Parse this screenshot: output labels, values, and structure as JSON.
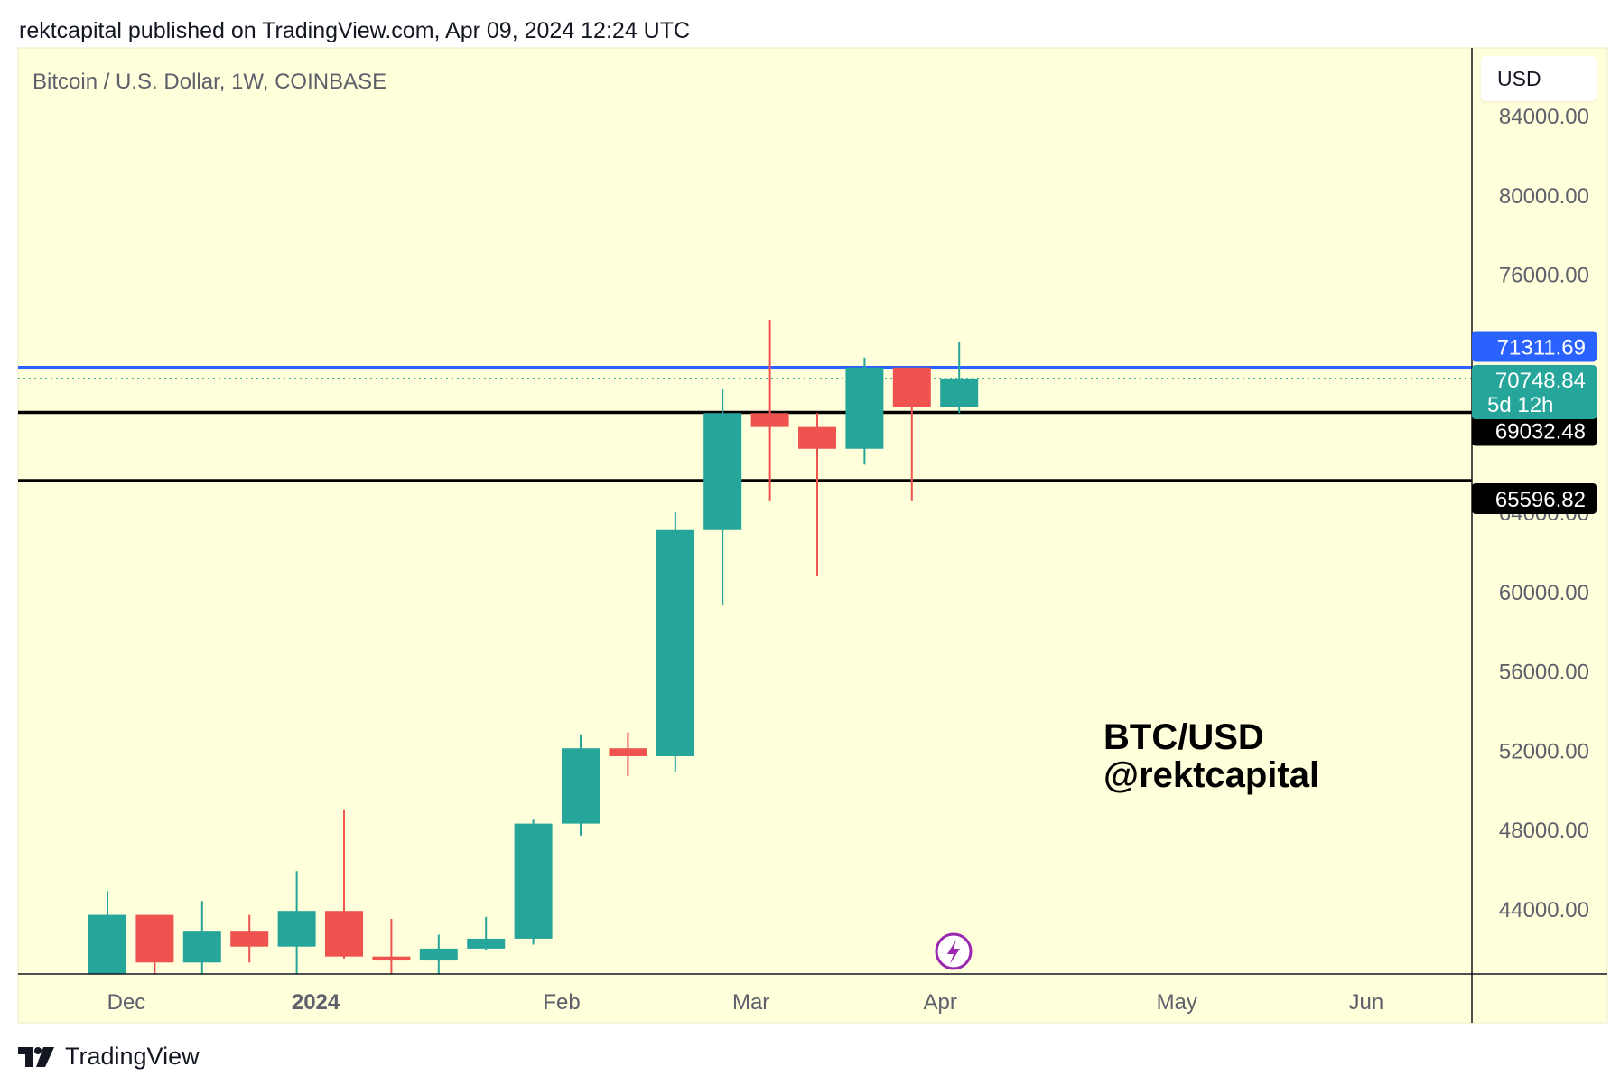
{
  "header": {
    "published_by": "rektcapital published on TradingView.com, Apr 09, 2024 12:24 UTC"
  },
  "symbol_title": "Bitcoin / U.S. Dollar, 1W, COINBASE",
  "currency": "USD",
  "watermark": {
    "line1": "BTC/USD",
    "line2": "@rektcapital"
  },
  "footer": {
    "brand": "TradingView"
  },
  "colors": {
    "background": "#ffffdb",
    "up": "#26a69a",
    "down": "#ef5350",
    "current_level": "#2962ff",
    "level": "#000000"
  },
  "chart_data": {
    "type": "candlestick",
    "title": "Bitcoin / U.S. Dollar, 1W, COINBASE",
    "x_ticks": [
      {
        "label": "Dec",
        "week": 0.4
      },
      {
        "label": "2024",
        "week": 4.4,
        "bold": true
      },
      {
        "label": "Feb",
        "week": 9.6
      },
      {
        "label": "Mar",
        "week": 13.6
      },
      {
        "label": "Apr",
        "week": 17.6
      },
      {
        "label": "May",
        "week": 22.6
      },
      {
        "label": "Jun",
        "week": 26.6
      }
    ],
    "y_ticks": [
      44000,
      48000,
      52000,
      56000,
      60000,
      64000,
      76000,
      80000,
      84000
    ],
    "y_tick_labels": [
      "44000.00",
      "48000.00",
      "52000.00",
      "56000.00",
      "60000.00",
      "64000.00",
      "76000.00",
      "80000.00",
      "84000.00"
    ],
    "ylim": [
      40700,
      86400
    ],
    "candles": [
      {
        "open": 40700,
        "high": 44900,
        "low": 40700,
        "close": 43700
      },
      {
        "open": 43700,
        "high": 43700,
        "low": 40700,
        "close": 41300
      },
      {
        "open": 41300,
        "high": 44400,
        "low": 40700,
        "close": 42900
      },
      {
        "open": 42900,
        "high": 43700,
        "low": 41300,
        "close": 42100
      },
      {
        "open": 42100,
        "high": 45900,
        "low": 40700,
        "close": 43900
      },
      {
        "open": 43900,
        "high": 49000,
        "low": 41500,
        "close": 41600
      },
      {
        "open": 41600,
        "high": 43500,
        "low": 40700,
        "close": 41400
      },
      {
        "open": 41400,
        "high": 42700,
        "low": 40700,
        "close": 42000
      },
      {
        "open": 42000,
        "high": 43600,
        "low": 41900,
        "close": 42500
      },
      {
        "open": 42500,
        "high": 48500,
        "low": 42200,
        "close": 48300
      },
      {
        "open": 48300,
        "high": 52800,
        "low": 47700,
        "close": 52100
      },
      {
        "open": 52100,
        "high": 52900,
        "low": 50700,
        "close": 51700
      },
      {
        "open": 51700,
        "high": 64000,
        "low": 50900,
        "close": 63100
      },
      {
        "open": 63100,
        "high": 70200,
        "low": 59300,
        "close": 69000
      },
      {
        "open": 69000,
        "high": 73700,
        "low": 64600,
        "close": 68300
      },
      {
        "open": 68300,
        "high": 69000,
        "low": 60800,
        "close": 67200
      },
      {
        "open": 67200,
        "high": 71800,
        "low": 66400,
        "close": 71300
      },
      {
        "open": 71300,
        "high": 71300,
        "low": 64600,
        "close": 69300
      },
      {
        "open": 69300,
        "high": 72600,
        "low": 69000,
        "close": 70749
      }
    ],
    "horizontal_levels": [
      {
        "value": 71311.69,
        "label": "71311.69",
        "style": "blue"
      },
      {
        "value": 69032.48,
        "label": "69032.48",
        "style": "black"
      },
      {
        "value": 65596.82,
        "label": "65596.82",
        "style": "black"
      }
    ],
    "last_price": {
      "value": 70748.84,
      "label": "70748.84",
      "countdown": "5d 12h"
    }
  }
}
